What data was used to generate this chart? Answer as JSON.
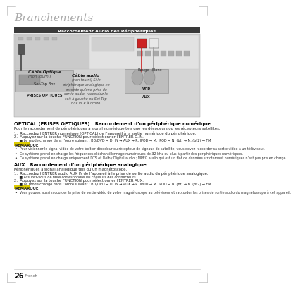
{
  "page_title": "Branchements",
  "header_bar_text": "Raccordement Audio des Périphériques",
  "header_bar_color": "#3a3a3a",
  "header_text_color": "#ffffff",
  "background_color": "#ffffff",
  "page_number": "26",
  "page_number_label": "  French",
  "section1_title": "OPTICAL (PRISES OPTIQUES) : Raccordement d’un périphérique numérique",
  "section1_intro": "Pour le raccordement de périphériques à signal numérique tels que les décodeurs ou les récepteurs satellites.",
  "section1_step1": "1.  Raccordez l’ENTRER numérique (OPTICAL) de l’appareil à la sortie numérique du périphérique.",
  "section1_step2": "2.  Appuyez sur la touche FUNCTION pour sélectionner l’ENTRER D.IN.",
  "section1_step2b": "     ■ Le mode change dans l’ordre suivant : BD/DVD → D. IN → AUX → R. IPOD → M. IPOD → N. (bt) → N. (bt2) → FM",
  "remarque1_title": "REMARQUE",
  "remarque1_pt1": "•  Pour visionner le signal vidéo de votre boîtier décodeur ou récepteur de signaux de satellite, vous devez raccorder sa sortie vidéo à un téléviseur.",
  "remarque1_pt2": "•  Ce système prend en charge les fréquences d’échantillonnage numériques de 32 kHz ou plus à partir des périphériques numériques.",
  "remarque1_pt3": "•  Ce système prend en charge uniquement DTS et Dolby Digital audio ; MPEG audio qui est un flot de données strictement numériques n’est pas pris en charge.",
  "section2_title": "AUX : Raccordement d’un périphérique analogique",
  "section2_intro": "Périphériques à signal analogique tels qu’un magnétoscope.",
  "section2_step1": "1.  Raccordez l’ENTRER audio AUX IN de l’appareil à la prise de sortie audio du périphérique analogique.",
  "section2_step1b": "     ■ Assurez-vous de faire correspondre les couleurs des connecteurs.",
  "section2_step2": "2.  Appuyez sur la touche FUNCTION pour sélectionner l’ENTRER AUX.",
  "section2_step2b": "     ■ Le mode change dans l’ordre suivant : BD/DVD → D. IN → AUX → R. IPOD → M. IPOD → N. (bt) → N. (bt2) → FM",
  "remarque2_title": "REMARQUE",
  "remarque2_pt1": "•  Vous pouvez aussi raccorder la prise de sortie vidéo de votre magnétoscope au téléviseur et raccorder les prises de sortie audio du magnétoscope à cet appareil.",
  "label_optical": "Câble Optique",
  "label_optical2": "(non fourni)",
  "label_audio_title": "Câble audio",
  "label_audio_body": "(non fourni) Si le\npériphérique analogique ne\npossède qu’une prise de\nsortie audio, raccordez-la\nsoit à gauche ou Set-Top\nBox VCR à droite.",
  "label_rouge": "Rouge",
  "label_blanc": "Blanc",
  "label_set_top": "Set-Top Box",
  "label_vcr": "VCR",
  "label_prises": "PRISES OPTIQUES",
  "label_aux": "AUX",
  "corner_color": "#aaaaaa",
  "step_bold_text1": "FUNCTION",
  "step_bold_text2": "FUNCTION"
}
